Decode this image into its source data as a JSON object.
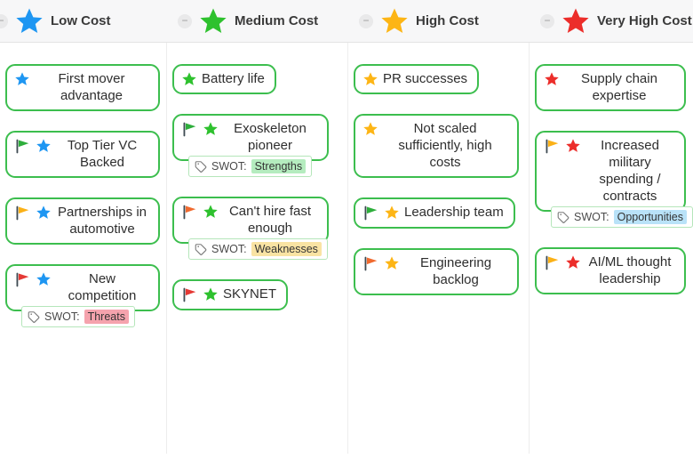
{
  "header": {
    "collapse_glyph": "−"
  },
  "colors": {
    "card_border": "#3CBE4E",
    "tag_border": "#B5E6BA",
    "flag_pole": "#3E4A52",
    "stars": {
      "blue": "#1E96F2",
      "green": "#2EC12E",
      "yellow": "#FDB515",
      "red": "#EC2D2A"
    },
    "flags": {
      "green": "#2EAE3C",
      "orange": "#F06A2F",
      "red": "#E53935",
      "yellow": "#FBB117"
    },
    "highlights": {
      "Threats": "#F5A3AD",
      "Strengths": "#B5ECBF",
      "Weaknesses": "#F9E3A3",
      "Opportunities": "#B9E2F8"
    }
  },
  "columns": [
    {
      "label": "Low Cost",
      "star": "blue",
      "cards": [
        {
          "star": "blue",
          "text": "First mover advantage"
        },
        {
          "flag": "green",
          "star": "blue",
          "text": "Top Tier VC Backed"
        },
        {
          "flag": "yellow",
          "star": "blue",
          "text": "Partnerships in automotive"
        },
        {
          "flag": "red",
          "star": "blue",
          "text": "New competition",
          "tag": {
            "label": "SWOT:",
            "value": "Threats"
          }
        }
      ]
    },
    {
      "label": "Medium Cost",
      "star": "green",
      "cards": [
        {
          "star": "green",
          "text": "Battery life"
        },
        {
          "flag": "green",
          "star": "green",
          "text": "Exoskeleton pioneer",
          "tag": {
            "label": "SWOT:",
            "value": "Strengths"
          }
        },
        {
          "flag": "orange",
          "star": "green",
          "text": "Can't hire fast enough",
          "tag": {
            "label": "SWOT:",
            "value": "Weaknesses"
          }
        },
        {
          "flag": "red",
          "star": "green",
          "text": "SKYNET"
        }
      ]
    },
    {
      "label": "High Cost",
      "star": "yellow",
      "cards": [
        {
          "star": "yellow",
          "text": "PR successes"
        },
        {
          "star": "yellow",
          "text": "Not scaled sufficiently, high costs"
        },
        {
          "flag": "green",
          "star": "yellow",
          "text": "Leadership team"
        },
        {
          "flag": "orange",
          "star": "yellow",
          "text": "Engineering backlog"
        }
      ]
    },
    {
      "label": "Very High Cost",
      "star": "red",
      "cards": [
        {
          "star": "red",
          "text": "Supply chain expertise"
        },
        {
          "flag": "yellow",
          "star": "red",
          "text": "Increased military spending / contracts",
          "tag": {
            "label": "SWOT:",
            "value": "Opportunities"
          }
        },
        {
          "flag": "yellow",
          "star": "red",
          "text": "AI/ML thought leadership"
        }
      ]
    }
  ]
}
